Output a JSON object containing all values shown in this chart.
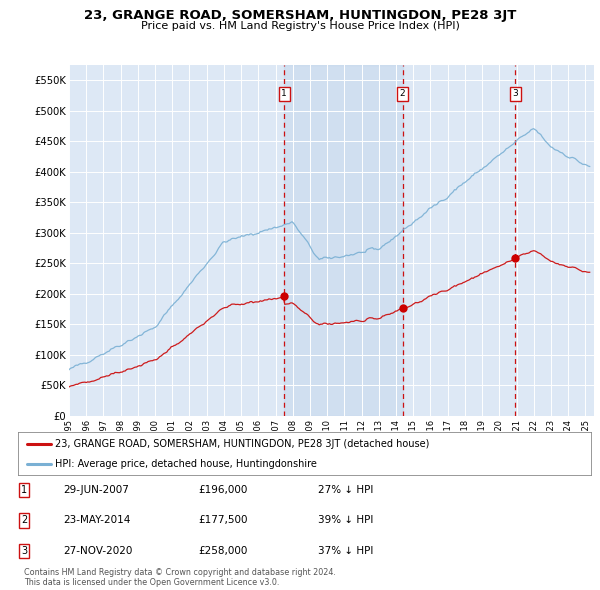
{
  "title": "23, GRANGE ROAD, SOMERSHAM, HUNTINGDON, PE28 3JT",
  "subtitle": "Price paid vs. HM Land Registry's House Price Index (HPI)",
  "background_color": "#ffffff",
  "plot_bg_color": "#dde8f5",
  "grid_color": "#ffffff",
  "ylim": [
    0,
    575000
  ],
  "xlim_start": 1995.0,
  "xlim_end": 2025.5,
  "yticks": [
    0,
    50000,
    100000,
    150000,
    200000,
    250000,
    300000,
    350000,
    400000,
    450000,
    500000,
    550000
  ],
  "ytick_labels": [
    "£0",
    "£50K",
    "£100K",
    "£150K",
    "£200K",
    "£250K",
    "£300K",
    "£350K",
    "£400K",
    "£450K",
    "£500K",
    "£550K"
  ],
  "hpi_color": "#7ab0d4",
  "red_color": "#cc1111",
  "sale_line_color": "#cc1111",
  "marker_color": "#cc0000",
  "shade_color": "#c8d8ee",
  "sale1_year_f": 2007.5,
  "sale1_price": 196000,
  "sale1_label": "1",
  "sale1_date": "29-JUN-2007",
  "sale1_amount": "£196,000",
  "sale1_pct": "27% ↓ HPI",
  "sale2_year_f": 2014.38,
  "sale2_price": 177500,
  "sale2_label": "2",
  "sale2_date": "23-MAY-2014",
  "sale2_amount": "£177,500",
  "sale2_pct": "39% ↓ HPI",
  "sale3_year_f": 2020.92,
  "sale3_price": 258000,
  "sale3_label": "3",
  "sale3_date": "27-NOV-2020",
  "sale3_amount": "£258,000",
  "sale3_pct": "37% ↓ HPI",
  "legend1_text": "23, GRANGE ROAD, SOMERSHAM, HUNTINGDON, PE28 3JT (detached house)",
  "legend2_text": "HPI: Average price, detached house, Huntingdonshire",
  "footer1": "Contains HM Land Registry data © Crown copyright and database right 2024.",
  "footer2": "This data is licensed under the Open Government Licence v3.0."
}
